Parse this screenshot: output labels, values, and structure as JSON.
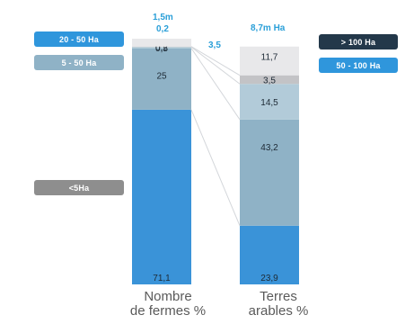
{
  "chart_data": {
    "type": "bar",
    "stacked": true,
    "categories": [
      "Nombre de fermes %",
      "Terres arables %"
    ],
    "category_lines": [
      [
        "Nombre",
        "de fermes %"
      ],
      [
        "Terres",
        "arables %"
      ]
    ],
    "totals": [
      "1,5m",
      "8,7m Ha"
    ],
    "series": [
      {
        "name": "<5Ha",
        "values": [
          71.1,
          23.9
        ],
        "labels": [
          "71,1",
          "23,9"
        ],
        "color": "#3a93d8"
      },
      {
        "name": "5 - 50 Ha",
        "values": [
          25,
          43.2
        ],
        "labels": [
          "25",
          "43,2"
        ],
        "color": "#8fb2c6"
      },
      {
        "name": "20 - 50 Ha",
        "values": [
          0.5,
          14.5
        ],
        "labels": [
          "0,5",
          "14,5"
        ],
        "color": "#b2cbd9"
      },
      {
        "name": "50 - 100 Ha",
        "values": [
          0.2,
          3.5
        ],
        "labels": [
          "0,2",
          "3,5"
        ],
        "color": "#c3c3c6"
      },
      {
        "name": "> 100 Ha",
        "values": [
          3.2,
          11.7
        ],
        "labels": [
          "",
          "11,7"
        ],
        "color": "#e8e8ea"
      }
    ],
    "outside_labels": [
      "0,2",
      "3,5"
    ],
    "ylim": [
      0,
      100
    ],
    "grid": false
  },
  "legend": {
    "ha_20_50": "20 - 50 Ha",
    "ha_5_50": "5 - 50 Ha",
    "ha_lt5": "<5Ha",
    "ha_gt100": "> 100 Ha",
    "ha_50_100": "50 - 100 Ha"
  },
  "colors": {
    "legend_bright_blue": "#2f96dc",
    "legend_grey_blue": "#8fb2c6",
    "legend_grey": "#8e8e8e",
    "legend_navy": "#23384a",
    "connector": "#d3d6da"
  }
}
